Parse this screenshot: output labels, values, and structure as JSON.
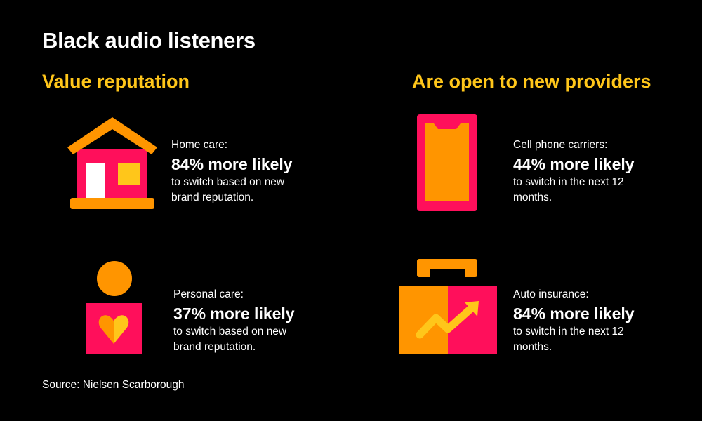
{
  "title": "Black audio listeners",
  "sections": [
    {
      "title": "Value reputation"
    },
    {
      "title": "Are open to new providers"
    }
  ],
  "stats": [
    {
      "label": "Home care:",
      "value": "84% more likely",
      "desc_lines": [
        "to switch based on new",
        "brand reputation."
      ],
      "icon": "house-icon"
    },
    {
      "label": "Personal care:",
      "value": "37% more likely",
      "desc_lines": [
        "to switch based on new",
        "brand reputation."
      ],
      "icon": "person-heart-icon"
    },
    {
      "label": "Cell phone carriers:",
      "value": "44% more likely",
      "desc_lines": [
        "to switch in the next 12",
        "months."
      ],
      "icon": "phone-icon"
    },
    {
      "label": "Auto insurance:",
      "value": "84% more likely",
      "desc_lines": [
        "to switch in the next 12",
        "months."
      ],
      "icon": "briefcase-trend-icon"
    }
  ],
  "source": "Source: Nielsen Scarborough",
  "colors": {
    "background": "#000000",
    "accent": "#ffc61a",
    "orange": "#ff9500",
    "pink": "#ff0f5b",
    "text": "#ffffff"
  }
}
